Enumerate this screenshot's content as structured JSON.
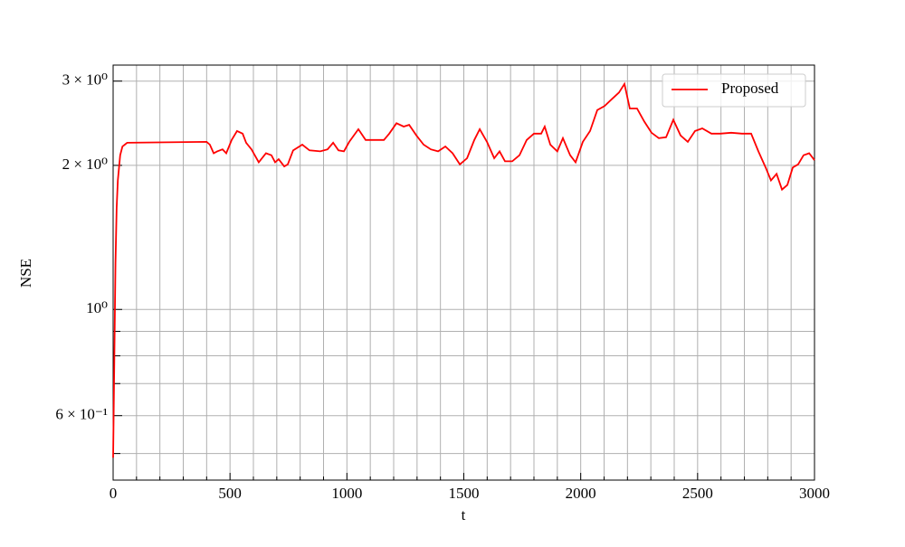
{
  "chart_data": {
    "type": "line",
    "y_label": "NSE",
    "x_label": "t",
    "x": [
      0,
      5,
      10,
      15,
      20,
      30,
      40,
      60,
      400,
      414,
      430,
      445,
      468,
      484,
      507,
      530,
      554,
      569,
      592,
      623,
      654,
      677,
      693,
      708,
      732,
      747,
      770,
      809,
      840,
      886,
      917,
      941,
      964,
      987,
      1010,
      1049,
      1080,
      1119,
      1158,
      1181,
      1212,
      1243,
      1266,
      1297,
      1328,
      1359,
      1390,
      1421,
      1452,
      1483,
      1514,
      1545,
      1568,
      1599,
      1630,
      1653,
      1676,
      1707,
      1738,
      1769,
      1800,
      1831,
      1846,
      1870,
      1900,
      1924,
      1955,
      1978,
      2009,
      2040,
      2071,
      2102,
      2133,
      2164,
      2187,
      2210,
      2241,
      2272,
      2303,
      2334,
      2365,
      2396,
      2427,
      2458,
      2489,
      2520,
      2559,
      2597,
      2644,
      2690,
      2729,
      2760,
      2791,
      2814,
      2838,
      2861,
      2884,
      2907,
      2930,
      2953,
      2977,
      3000
    ],
    "series": [
      {
        "name": "Proposed",
        "color": "#ff0000",
        "values": [
          0.49,
          0.78,
          1.25,
          1.63,
          1.86,
          2.1,
          2.19,
          2.23,
          2.24,
          2.21,
          2.12,
          2.14,
          2.16,
          2.12,
          2.26,
          2.36,
          2.33,
          2.23,
          2.16,
          2.03,
          2.12,
          2.1,
          2.03,
          2.06,
          1.99,
          2.01,
          2.15,
          2.21,
          2.15,
          2.14,
          2.16,
          2.23,
          2.15,
          2.14,
          2.24,
          2.38,
          2.26,
          2.26,
          2.26,
          2.33,
          2.45,
          2.41,
          2.43,
          2.31,
          2.21,
          2.16,
          2.14,
          2.19,
          2.12,
          2.01,
          2.07,
          2.26,
          2.38,
          2.24,
          2.07,
          2.14,
          2.04,
          2.04,
          2.1,
          2.26,
          2.33,
          2.33,
          2.41,
          2.21,
          2.14,
          2.28,
          2.1,
          2.03,
          2.24,
          2.36,
          2.61,
          2.66,
          2.75,
          2.84,
          2.96,
          2.63,
          2.63,
          2.47,
          2.34,
          2.28,
          2.29,
          2.49,
          2.31,
          2.24,
          2.36,
          2.39,
          2.33,
          2.33,
          2.34,
          2.33,
          2.33,
          2.14,
          1.98,
          1.86,
          1.92,
          1.78,
          1.82,
          1.98,
          2.01,
          2.1,
          2.12,
          2.05
        ]
      }
    ],
    "xlim": [
      0,
      3000
    ],
    "xticks": [
      0,
      500,
      1000,
      1500,
      2000,
      2500,
      3000
    ],
    "xminor_ticks": [
      100,
      200,
      300,
      400,
      600,
      700,
      800,
      900,
      1100,
      1200,
      1300,
      1400,
      1600,
      1700,
      1800,
      1900,
      2100,
      2200,
      2300,
      2400,
      2600,
      2700,
      2800,
      2900
    ],
    "ylim": [
      0.44,
      3.24
    ],
    "y_log": true,
    "yticks": [
      {
        "value": 0.6,
        "label": "6 × 10⁻¹"
      },
      {
        "value": 1,
        "label": "10⁰"
      },
      {
        "value": 2,
        "label": "2 × 10⁰"
      },
      {
        "value": 3,
        "label": "3 × 10⁰"
      }
    ],
    "yminor_ticks": [
      0.5,
      0.7,
      0.8,
      0.9
    ],
    "grid": true,
    "legend": "upper right"
  }
}
